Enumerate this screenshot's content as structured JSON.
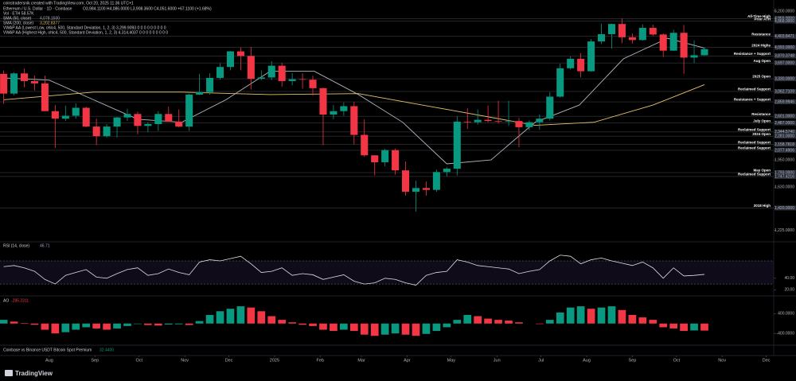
{
  "caption": "coinstradersnik created with TradingView.com, Oct 20, 2025 11:36 UTC+1",
  "footer": "TradingView",
  "chart_data": [
    {
      "type": "candlestick",
      "title": "Ethereum / U.S. Dollar · 1D · Coinbase",
      "ohlc_text": "O3,984.1100 H4,086.0000 L3,908.3600 C4,051.6000 +67.1100 (+1.68%)",
      "indicators": [
        "Vol · ETH 58.57K",
        "VWAP AA (Lowest Low, ohlc4, 500, Standard Deviation, 1, 2, 3) 3,299.9093 0 0 0 0 0 0 0 0 0",
        "VWAP AA (Highest High, ohlc4, 500, Standard Deviation, 1, 2, 3) 4,314.4037 0 0 0 0 0 0 0 0 0"
      ],
      "up_color": "#089981",
      "down_color": "#f23645",
      "x": [
        -31,
        -24,
        -17,
        -10,
        -3,
        4,
        11,
        18,
        25,
        32,
        39,
        46,
        53,
        60,
        67,
        74,
        81,
        88,
        95,
        102,
        109,
        116,
        123,
        130,
        137,
        144,
        151,
        158,
        165,
        172,
        179,
        186,
        193,
        200,
        207,
        214,
        221,
        228,
        235,
        242,
        249,
        256,
        263,
        270,
        277,
        284,
        291,
        298,
        305,
        312,
        319,
        326,
        333,
        340,
        347,
        354,
        361,
        368,
        375,
        382,
        389,
        396,
        403,
        410,
        417,
        424,
        431,
        438,
        445
      ],
      "open": [
        3440,
        3020,
        3450,
        3280,
        3230,
        2690,
        2560,
        2610,
        2750,
        2430,
        2280,
        2430,
        2580,
        2640,
        2440,
        2470,
        2640,
        2510,
        2430,
        3000,
        3050,
        3350,
        3600,
        3990,
        3870,
        3330,
        3360,
        3630,
        3280,
        3320,
        3310,
        3130,
        2630,
        2690,
        2780,
        2300,
        2010,
        1920,
        2080,
        1820,
        1580,
        1620,
        1600,
        1800,
        1840,
        2510,
        2500,
        2540,
        2520,
        2510,
        2520,
        2420,
        2500,
        2560,
        2960,
        3570,
        3800,
        3500,
        4260,
        4470,
        4780,
        4380,
        4300,
        4660,
        4460,
        4010,
        4510,
        3830,
        3890
      ],
      "high": [
        3520,
        3480,
        3560,
        3400,
        3400,
        2800,
        2790,
        2830,
        2770,
        2560,
        2470,
        2590,
        2730,
        2680,
        2500,
        2690,
        2770,
        2720,
        3020,
        3440,
        3450,
        3690,
        4000,
        4100,
        4110,
        3520,
        3740,
        3700,
        3460,
        3450,
        3400,
        3140,
        2800,
        2850,
        2860,
        2550,
        2010,
        2100,
        2100,
        1930,
        1700,
        1690,
        1830,
        1860,
        2600,
        2740,
        2720,
        2790,
        2880,
        2880,
        2570,
        2530,
        2630,
        3050,
        3680,
        3860,
        3940,
        4330,
        4790,
        4790,
        4960,
        4490,
        4770,
        4760,
        4490,
        4600,
        4750,
        4290,
        4090
      ],
      "low": [
        2820,
        2990,
        3150,
        3080,
        2690,
        2110,
        2520,
        2560,
        2420,
        2150,
        2260,
        2260,
        2520,
        2310,
        2340,
        2360,
        2510,
        2420,
        2360,
        2990,
        3000,
        3310,
        3520,
        3520,
        3100,
        3300,
        3300,
        3160,
        3190,
        3120,
        2980,
        2150,
        2550,
        2610,
        2160,
        1990,
        1760,
        1870,
        1770,
        1540,
        1385,
        1540,
        1580,
        1750,
        1760,
        2390,
        2460,
        2500,
        2480,
        2440,
        2120,
        2370,
        2380,
        2530,
        2940,
        3540,
        3360,
        3490,
        4190,
        4060,
        4210,
        4200,
        4280,
        4420,
        3850,
        4000,
        3440,
        3690,
        3880
      ],
      "close": [
        3020,
        3450,
        3280,
        3230,
        2690,
        2560,
        2610,
        2750,
        2430,
        2280,
        2430,
        2580,
        2640,
        2440,
        2470,
        2640,
        2510,
        2430,
        3000,
        3050,
        3350,
        3600,
        3990,
        3870,
        3330,
        3360,
        3630,
        3280,
        3320,
        3310,
        3130,
        2630,
        2690,
        2780,
        2300,
        2010,
        1920,
        2080,
        1820,
        1580,
        1620,
        1600,
        1800,
        1840,
        2510,
        2500,
        2540,
        2520,
        2510,
        2520,
        2420,
        2500,
        2560,
        2960,
        3570,
        3800,
        3500,
        4260,
        4470,
        4780,
        4380,
        4300,
        4660,
        4460,
        4010,
        4510,
        3830,
        3890,
        4050
      ],
      "lines": [
        {
          "name": "SMA (50, close)",
          "last_label": "4,078.1500",
          "color": "#b2b5be",
          "x": [
            -31,
            0,
            30,
            60,
            90,
            120,
            150,
            180,
            210,
            240,
            270,
            300,
            330,
            360,
            390,
            420,
            445
          ],
          "values": [
            3350,
            3300,
            2900,
            2550,
            2500,
            2900,
            3500,
            3500,
            3000,
            2500,
            1900,
            1950,
            2500,
            2800,
            3800,
            4350,
            4078.15
          ]
        },
        {
          "name": "SMA (200, close)",
          "last_label": "3,202.8377",
          "color": "#e9c46a",
          "x": [
            -31,
            30,
            90,
            150,
            210,
            270,
            330,
            370,
            410,
            445
          ],
          "values": [
            2900,
            3050,
            3050,
            3000,
            3020,
            2720,
            2450,
            2500,
            2800,
            3202.8377
          ]
        }
      ],
      "log_scale": true,
      "ylim": [
        1160,
        5370
      ],
      "yticks": [
        {
          "value": 5200,
          "label": "5,200.0000"
        },
        {
          "value": 1950,
          "label": "1,950.0000"
        },
        {
          "value": 1630,
          "label": "1,630.0000"
        },
        {
          "value": 1225,
          "label": "1,225.0000"
        }
      ],
      "xlim": [
        -33.5,
        491.5
      ],
      "xticks": [
        {
          "value": 0,
          "label": "Aug"
        },
        {
          "value": 31,
          "label": "Sep"
        },
        {
          "value": 61,
          "label": "Oct"
        },
        {
          "value": 92,
          "label": "Nov"
        },
        {
          "value": 122,
          "label": "Dec"
        },
        {
          "value": 153,
          "label": "2025"
        },
        {
          "value": 184,
          "label": "Feb"
        },
        {
          "value": 212,
          "label": "Mar"
        },
        {
          "value": 243,
          "label": "Apr"
        },
        {
          "value": 273,
          "label": "May"
        },
        {
          "value": 304,
          "label": "Jun"
        },
        {
          "value": 334,
          "label": "Jul"
        },
        {
          "value": 365,
          "label": "Aug"
        },
        {
          "value": 396,
          "label": "Sep"
        },
        {
          "value": 426,
          "label": "Oct"
        },
        {
          "value": 457,
          "label": "Nov"
        },
        {
          "value": 487,
          "label": "Dec"
        }
      ],
      "levels": [
        {
          "text": "All-Time High",
          "value": 4955.9,
          "label": "4,955.9000"
        },
        {
          "text": "Prior ATH",
          "value": 4868,
          "label": "4,868.0000"
        },
        {
          "text": "Resistance",
          "value": 4403.8471,
          "label": "4,403.8471"
        },
        {
          "text": "2024 Highs",
          "value": 4093,
          "label": "4,093.0000"
        },
        {
          "text": "Resistance + Support",
          "value": 3870.3748,
          "label": "3,870.3748"
        },
        {
          "text": "Aug Open",
          "value": 3697,
          "label": "3,697.0000"
        },
        {
          "text": "2025 Open",
          "value": 3330,
          "label": "3,330.0000"
        },
        {
          "text": "Reclaimed Support",
          "value": 3062.7109,
          "label": "3,062.7109"
        },
        {
          "text": "Resistance + Support",
          "value": 2859.9946,
          "label": "2,859.9946"
        },
        {
          "text": "Resistance",
          "value": 2601,
          "label": "2,601.0000"
        },
        {
          "text": "July Open",
          "value": 2487,
          "label": "2,487.0000"
        },
        {
          "text": "Reclaimed Support",
          "value": 2344.574,
          "label": "2,344.5740"
        },
        {
          "text": "2024 Open",
          "value": 2281,
          "label": "2,281.0000"
        },
        {
          "text": "Reclaimed Support",
          "value": 2158.7818,
          "label": "2,158.7818"
        },
        {
          "text": "Reclaimed Support",
          "value": 2077.4906,
          "label": "2,077.4906"
        },
        {
          "text": "May Open",
          "value": 1793,
          "label": "1,793.0000"
        },
        {
          "text": "Reclaimed Support",
          "value": 1747.4216,
          "label": "1,747.4216"
        },
        {
          "text": "2018 High",
          "value": 1420,
          "label": "1,420.0000"
        }
      ]
    },
    {
      "type": "line",
      "title": "RSI (14, close)",
      "color": "#e0e0e0",
      "band_color": "#7e57c2",
      "values": [
        60,
        62,
        58,
        52,
        38,
        30,
        45,
        50,
        55,
        42,
        40,
        48,
        55,
        58,
        45,
        48,
        56,
        50,
        46,
        68,
        72,
        70,
        74,
        78,
        65,
        50,
        52,
        58,
        45,
        48,
        46,
        38,
        42,
        46,
        35,
        30,
        32,
        40,
        38,
        32,
        28,
        45,
        50,
        52,
        72,
        68,
        62,
        60,
        58,
        56,
        48,
        52,
        55,
        70,
        80,
        78,
        65,
        72,
        75,
        70,
        66,
        62,
        68,
        58,
        40,
        58,
        44,
        45,
        46.71
      ],
      "bands": [
        30,
        70
      ],
      "ylim": [
        15,
        92
      ],
      "yticks": [
        {
          "value": 40,
          "label": "40.00"
        },
        {
          "value": 20,
          "label": "20.00"
        }
      ]
    },
    {
      "type": "bar",
      "title": "AO",
      "up_color": "#089981",
      "down_color": "#f23645",
      "values": [
        150,
        80,
        20,
        -50,
        -250,
        -400,
        -350,
        -250,
        -150,
        -200,
        -250,
        -200,
        -100,
        -20,
        -60,
        -80,
        -40,
        -30,
        -60,
        100,
        350,
        500,
        600,
        700,
        650,
        500,
        300,
        150,
        50,
        -50,
        -100,
        -250,
        -300,
        -250,
        -300,
        -450,
        -500,
        -450,
        -400,
        -450,
        -500,
        -420,
        -300,
        -150,
        150,
        350,
        300,
        200,
        150,
        120,
        50,
        0,
        -20,
        150,
        450,
        650,
        700,
        600,
        650,
        700,
        550,
        350,
        250,
        150,
        -150,
        -200,
        -300,
        -280,
        -285.2311
      ],
      "ylim": [
        -750,
        800
      ],
      "yticks": [
        {
          "value": 400,
          "label": "400.0000"
        },
        {
          "value": -400,
          "label": "-400.0000"
        }
      ]
    },
    {
      "type": "text",
      "title": "Coinbase vs Binance USDT Bitcoin Spot Premium",
      "value_text": "32.4400"
    }
  ]
}
